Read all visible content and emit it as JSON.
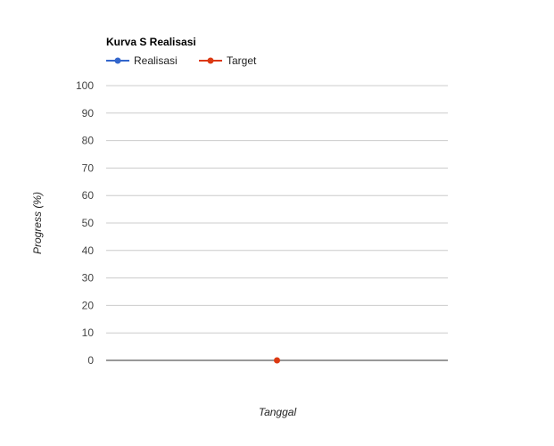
{
  "chart_data": {
    "type": "line",
    "title": "Kurva S Realisasi",
    "xlabel": "Tanggal",
    "ylabel": "Progress (%)",
    "ylim": [
      0,
      100
    ],
    "y_ticks": [
      "0",
      "10",
      "20",
      "30",
      "40",
      "50",
      "60",
      "70",
      "80",
      "90",
      "100"
    ],
    "grid": true,
    "legend_position": "top-left",
    "series": [
      {
        "name": "Realisasi",
        "color": "#3366cc",
        "points": []
      },
      {
        "name": "Target",
        "color": "#dc3912",
        "points": [
          {
            "x": "",
            "y": 0
          }
        ]
      }
    ]
  }
}
